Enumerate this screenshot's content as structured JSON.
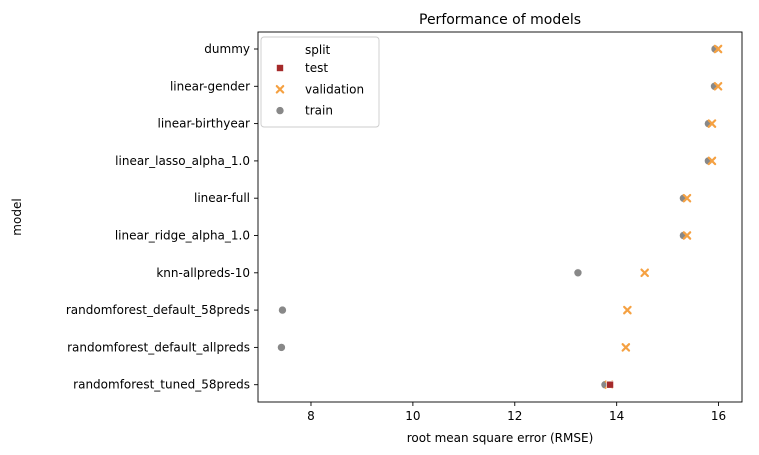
{
  "chart_data": {
    "type": "scatter",
    "title": "Performance of models",
    "xlabel": "root mean square error (RMSE)",
    "ylabel": "model",
    "xlim": [
      6.96,
      16.46
    ],
    "xticks": [
      8,
      10,
      12,
      14,
      16
    ],
    "grid": false,
    "legend_position": "top-left",
    "legend_title": "split",
    "categories": [
      "dummy",
      "linear-gender",
      "linear-birthyear",
      "linear_lasso_alpha_1.0",
      "linear-full",
      "linear_ridge_alpha_1.0",
      "knn-allpreds-10",
      "randomforest_default_58preds",
      "randomforest_default_allpreds",
      "randomforest_tuned_58preds"
    ],
    "series": [
      {
        "name": "test",
        "marker": "square",
        "color": "#a52a2a",
        "points": [
          {
            "model": "randomforest_tuned_58preds",
            "rmse": 13.87
          }
        ]
      },
      {
        "name": "validation",
        "marker": "x",
        "color": "#f5a142",
        "points": [
          {
            "model": "dummy",
            "rmse": 15.99
          },
          {
            "model": "linear-gender",
            "rmse": 15.99
          },
          {
            "model": "linear-birthyear",
            "rmse": 15.87
          },
          {
            "model": "linear_lasso_alpha_1.0",
            "rmse": 15.87
          },
          {
            "model": "linear-full",
            "rmse": 15.38
          },
          {
            "model": "linear_ridge_alpha_1.0",
            "rmse": 15.38
          },
          {
            "model": "knn-allpreds-10",
            "rmse": 14.55
          },
          {
            "model": "randomforest_default_58preds",
            "rmse": 14.21
          },
          {
            "model": "randomforest_default_allpreds",
            "rmse": 14.18
          },
          {
            "model": "randomforest_tuned_58preds",
            "rmse": 13.85
          }
        ]
      },
      {
        "name": "train",
        "marker": "circle",
        "color": "#888888",
        "points": [
          {
            "model": "dummy",
            "rmse": 15.93
          },
          {
            "model": "linear-gender",
            "rmse": 15.92
          },
          {
            "model": "linear-birthyear",
            "rmse": 15.8
          },
          {
            "model": "linear_lasso_alpha_1.0",
            "rmse": 15.8
          },
          {
            "model": "linear-full",
            "rmse": 15.31
          },
          {
            "model": "linear_ridge_alpha_1.0",
            "rmse": 15.31
          },
          {
            "model": "knn-allpreds-10",
            "rmse": 13.24
          },
          {
            "model": "randomforest_default_58preds",
            "rmse": 7.44
          },
          {
            "model": "randomforest_default_allpreds",
            "rmse": 7.42
          },
          {
            "model": "randomforest_tuned_58preds",
            "rmse": 13.77
          }
        ]
      }
    ]
  }
}
